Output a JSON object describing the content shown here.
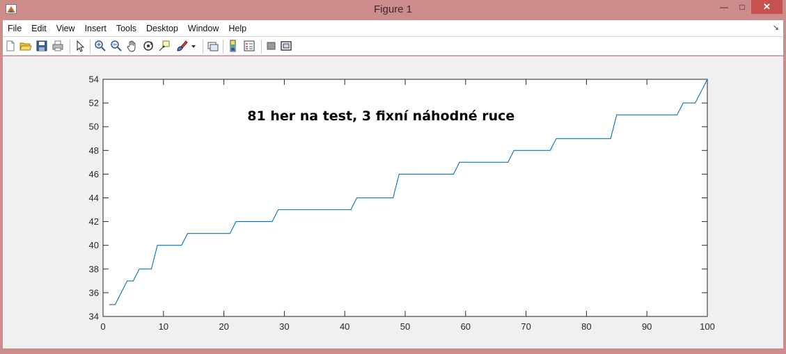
{
  "window": {
    "title": "Figure 1",
    "min_glyph": "—",
    "max_glyph": "□",
    "close_glyph": "✕"
  },
  "menu": {
    "items": [
      "File",
      "Edit",
      "View",
      "Insert",
      "Tools",
      "Desktop",
      "Window",
      "Help"
    ],
    "dock_glyph": "↘"
  },
  "toolbar": {
    "icons": [
      "new-figure-icon",
      "open-file-icon",
      "save-icon",
      "print-icon",
      "pointer-icon",
      "zoom-in-icon",
      "zoom-out-icon",
      "pan-hand-icon",
      "rotate-3d-icon",
      "data-cursor-icon",
      "brush-icon",
      "brush-dropdown-icon",
      "link-plot-icon",
      "insert-colorbar-icon",
      "insert-legend-icon",
      "hide-plot-tools-icon",
      "show-plot-tools-icon"
    ]
  },
  "chart_data": {
    "type": "line",
    "title": "81 her na test, 3 fixní náhodné ruce",
    "xlabel": "",
    "ylabel": "",
    "xlim": [
      0,
      100
    ],
    "ylim": [
      34,
      54
    ],
    "xticks": [
      0,
      10,
      20,
      30,
      40,
      50,
      60,
      70,
      80,
      90,
      100
    ],
    "yticks": [
      34,
      36,
      38,
      40,
      42,
      44,
      46,
      48,
      50,
      52,
      54
    ],
    "grid": false,
    "color": "#0072bd",
    "x": [
      1,
      2,
      3,
      4,
      5,
      6,
      7,
      8,
      9,
      10,
      11,
      12,
      13,
      14,
      15,
      16,
      17,
      18,
      19,
      20,
      21,
      22,
      23,
      24,
      25,
      26,
      27,
      28,
      29,
      30,
      31,
      32,
      33,
      34,
      35,
      36,
      37,
      38,
      39,
      40,
      41,
      42,
      43,
      44,
      45,
      46,
      47,
      48,
      49,
      50,
      51,
      52,
      53,
      54,
      55,
      56,
      57,
      58,
      59,
      60,
      61,
      62,
      63,
      64,
      65,
      66,
      67,
      68,
      69,
      70,
      71,
      72,
      73,
      74,
      75,
      76,
      77,
      78,
      79,
      80,
      81,
      82,
      83,
      84,
      85,
      86,
      87,
      88,
      89,
      90,
      91,
      92,
      93,
      94,
      95,
      96,
      97,
      98,
      99,
      100
    ],
    "y": [
      35,
      35,
      36,
      37,
      37,
      38,
      38,
      38,
      40,
      40,
      40,
      40,
      40,
      41,
      41,
      41,
      41,
      41,
      41,
      41,
      41,
      42,
      42,
      42,
      42,
      42,
      42,
      42,
      43,
      43,
      43,
      43,
      43,
      43,
      43,
      43,
      43,
      43,
      43,
      43,
      43,
      44,
      44,
      44,
      44,
      44,
      44,
      44,
      46,
      46,
      46,
      46,
      46,
      46,
      46,
      46,
      46,
      46,
      47,
      47,
      47,
      47,
      47,
      47,
      47,
      47,
      47,
      48,
      48,
      48,
      48,
      48,
      48,
      48,
      49,
      49,
      49,
      49,
      49,
      49,
      49,
      49,
      49,
      49,
      51,
      51,
      51,
      51,
      51,
      51,
      51,
      51,
      51,
      51,
      51,
      52,
      52,
      52,
      53,
      54
    ]
  }
}
